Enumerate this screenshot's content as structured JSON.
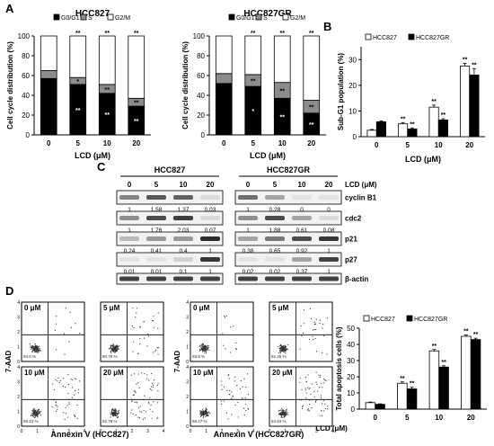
{
  "panel_labels": {
    "A": "A",
    "B": "B",
    "C": "C",
    "D": "D"
  },
  "chart_data": [
    {
      "panel": "A",
      "type": "bar",
      "stacked": true,
      "title": "HCC827",
      "xlabel": "LCD (μM)",
      "ylabel": "Cell cycle distribution (%)",
      "ylim": [
        0,
        100
      ],
      "yticks": [
        0,
        20,
        40,
        60,
        80,
        100
      ],
      "categories": [
        "0",
        "5",
        "10",
        "20"
      ],
      "legend": "top",
      "series": [
        {
          "name": "G0/G1",
          "color": "#000000",
          "values": [
            57,
            51,
            42,
            29
          ]
        },
        {
          "name": "S",
          "color": "#8c8c8c",
          "values": [
            8,
            7,
            9,
            8
          ]
        },
        {
          "name": "G2/M",
          "color": "#ffffff",
          "values": [
            35,
            42,
            49,
            63
          ]
        }
      ],
      "annotations": {
        "G0/G1": [
          "",
          "**",
          "**",
          "**"
        ],
        "S": [
          "",
          "*",
          "**",
          "**"
        ],
        "G2/M": [
          "",
          "**",
          "**",
          "**"
        ]
      }
    },
    {
      "panel": "A",
      "type": "bar",
      "stacked": true,
      "title": "HCC827GR",
      "xlabel": "LCD (μM)",
      "ylabel": "Cell cycle distribution (%)",
      "ylim": [
        0,
        100
      ],
      "yticks": [
        0,
        20,
        40,
        60,
        80,
        100
      ],
      "categories": [
        "0",
        "5",
        "10",
        "20"
      ],
      "legend": "top",
      "series": [
        {
          "name": "G0/G1",
          "color": "#000000",
          "values": [
            52,
            49,
            37,
            22
          ]
        },
        {
          "name": "S",
          "color": "#8c8c8c",
          "values": [
            10,
            12,
            16,
            13
          ]
        },
        {
          "name": "G2/M",
          "color": "#ffffff",
          "values": [
            38,
            39,
            47,
            65
          ]
        }
      ],
      "annotations": {
        "G0/G1": [
          "",
          "*",
          "**",
          "**"
        ],
        "S": [
          "",
          "**",
          "**",
          "**"
        ],
        "G2/M": [
          "",
          "**",
          "**",
          "**"
        ]
      }
    },
    {
      "panel": "B",
      "type": "bar",
      "title": "",
      "xlabel": "LCD (μM)",
      "ylabel": "Sub-G1 population (%)",
      "ylim": [
        0,
        35
      ],
      "yticks": [
        0,
        10,
        20,
        30
      ],
      "categories": [
        "0",
        "5",
        "10",
        "20"
      ],
      "legend": "top",
      "series": [
        {
          "name": "HCC827",
          "color": "#ffffff",
          "values": [
            2.5,
            5,
            11.5,
            27.5
          ],
          "err": [
            0.3,
            0.5,
            0.8,
            1.0
          ],
          "sig": [
            "",
            "**",
            "**",
            "**"
          ]
        },
        {
          "name": "HCC827GR",
          "color": "#000000",
          "values": [
            5.8,
            3,
            6.5,
            24
          ],
          "err": [
            0.3,
            0.4,
            0.5,
            2.5
          ],
          "sig": [
            "",
            "**",
            "**",
            "**"
          ]
        }
      ]
    },
    {
      "panel": "D",
      "type": "bar",
      "title": "",
      "xlabel": "LCD (μM)",
      "ylabel": "Total apoptosis cells (%)",
      "ylim": [
        0,
        50
      ],
      "yticks": [
        0,
        10,
        20,
        30,
        40,
        50
      ],
      "categories": [
        "0",
        "5",
        "10",
        "20"
      ],
      "legend": "top",
      "series": [
        {
          "name": "HCC827",
          "color": "#ffffff",
          "values": [
            4,
            16,
            36,
            45
          ],
          "err": [
            0.4,
            0.8,
            0.8,
            0.8
          ],
          "sig": [
            "",
            "**",
            "**",
            "**"
          ]
        },
        {
          "name": "HCC827GR",
          "color": "#000000",
          "values": [
            3,
            12.5,
            26,
            43
          ],
          "err": [
            0.3,
            1.0,
            0.8,
            0.8
          ],
          "sig": [
            "",
            "**",
            "**",
            "**"
          ]
        }
      ]
    }
  ],
  "panel_c": {
    "unit_label": "LCD (μM)",
    "groups": [
      "HCC827",
      "HCC827GR"
    ],
    "doses": [
      "0",
      "5",
      "10",
      "20"
    ],
    "proteins": [
      {
        "name": "cyclin B1",
        "left": [
          "1",
          "1.58",
          "1.37",
          "0.03"
        ],
        "right": [
          "1",
          "0.28",
          "0",
          "0"
        ],
        "left_int": [
          0.45,
          0.65,
          0.6,
          0.05
        ],
        "right_int": [
          0.55,
          0.3,
          0.02,
          0.02
        ]
      },
      {
        "name": "cdc2",
        "left": [
          "1",
          "1.76",
          "2.03",
          "0.07"
        ],
        "right": [
          "1",
          "1.88",
          "0.61",
          "0.08"
        ],
        "left_int": [
          0.4,
          0.7,
          0.75,
          0.06
        ],
        "right_int": [
          0.4,
          0.7,
          0.3,
          0.05
        ]
      },
      {
        "name": "p21",
        "left": [
          "0.24",
          "0.41",
          "0.4",
          "1"
        ],
        "right": [
          "0.38",
          "0.65",
          "0.92",
          "1"
        ],
        "left_int": [
          0.2,
          0.35,
          0.35,
          0.85
        ],
        "right_int": [
          0.3,
          0.5,
          0.7,
          0.8
        ]
      },
      {
        "name": "p27",
        "left": [
          "0.01",
          "0.01",
          "0.1",
          "1"
        ],
        "right": [
          "0.02",
          "0.02",
          "0.37",
          "1"
        ],
        "left_int": [
          0.02,
          0.02,
          0.1,
          0.8
        ],
        "right_int": [
          0.02,
          0.02,
          0.3,
          0.75
        ]
      },
      {
        "name": "β-actin",
        "left": [],
        "right": [],
        "left_int": [
          0.75,
          0.75,
          0.75,
          0.75
        ],
        "right_int": [
          0.75,
          0.75,
          0.75,
          0.75
        ]
      }
    ]
  },
  "panel_d_flow": {
    "y_axis_label": "7-AAD",
    "x_tick_labels": [
      "0",
      "1",
      "2",
      "3",
      "4"
    ],
    "y_tick_labels": [
      "0",
      "1",
      "2",
      "3",
      "4"
    ],
    "groups": [
      {
        "x_axis_label": "Annexin V (HCC827)",
        "plots": [
          {
            "dose": "0 μM",
            "q3": "94.0 %",
            "spread": 0.15
          },
          {
            "dose": "5 μM",
            "q3": "80.78 %",
            "spread": 0.4
          },
          {
            "dose": "10 μM",
            "q3": "59.23 %",
            "spread": 0.6
          },
          {
            "dose": "20 μM",
            "q3": "52.79 %",
            "spread": 0.75
          }
        ]
      },
      {
        "x_axis_label": "Annexin V (HCC827GR)",
        "plots": [
          {
            "dose": "0 μM",
            "q3": "93.8 %",
            "spread": 0.15
          },
          {
            "dose": "5 μM",
            "q3": "82.45 %",
            "spread": 0.35
          },
          {
            "dose": "10 μM",
            "q3": "68.47 %",
            "spread": 0.55
          },
          {
            "dose": "20 μM",
            "q3": "54.93 %",
            "spread": 0.75
          }
        ]
      }
    ]
  }
}
